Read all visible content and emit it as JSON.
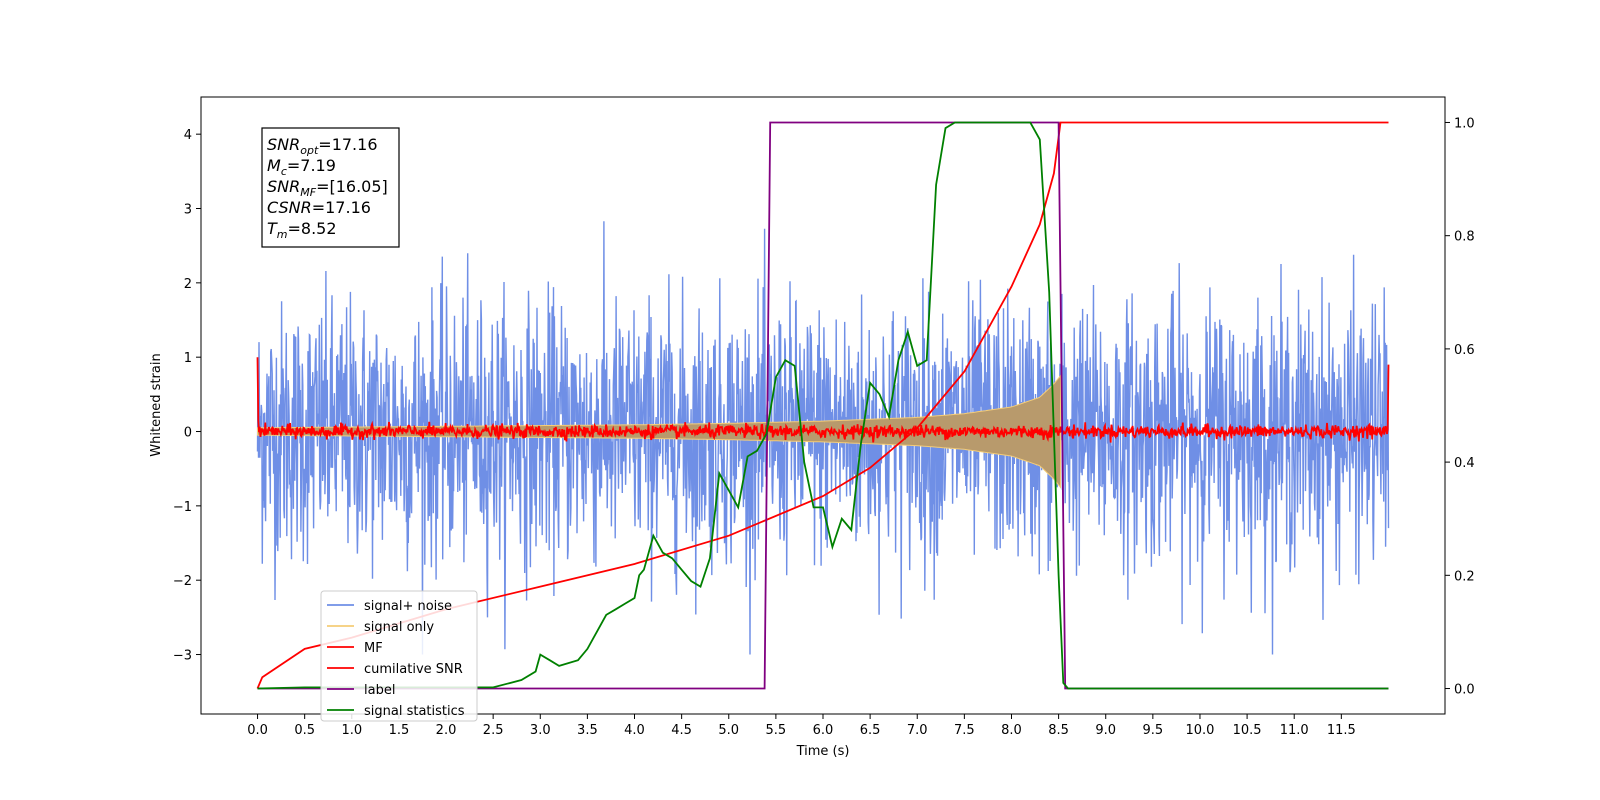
{
  "chart_data": {
    "type": "line",
    "xlabel": "Time (s)",
    "ylabel": "Whitened strain",
    "xlim": [
      -0.6,
      12.6
    ],
    "ylim_left": [
      -3.8,
      4.5
    ],
    "ylim_right": [
      -0.045,
      1.045
    ],
    "xticks": [
      "0.0",
      "0.5",
      "1.0",
      "1.5",
      "2.0",
      "2.5",
      "3.0",
      "3.5",
      "4.0",
      "4.5",
      "5.0",
      "5.5",
      "6.0",
      "6.5",
      "7.0",
      "7.5",
      "8.0",
      "8.5",
      "9.0",
      "9.5",
      "10.0",
      "10.5",
      "11.0",
      "11.5"
    ],
    "yticks_left": [
      "4",
      "3",
      "2",
      "1",
      "0",
      "−1",
      "−2",
      "−3"
    ],
    "yticks_right": [
      "1.0",
      "0.8",
      "0.6",
      "0.4",
      "0.2",
      "0.0"
    ],
    "annotation": {
      "lines": [
        {
          "sym": "SNR",
          "sub": "opt",
          "rest": "=17.16"
        },
        {
          "sym": "M",
          "sub": "c",
          "rest": "=7.19"
        },
        {
          "sym": "SNR",
          "sub": "MF",
          "rest": "=[16.05]"
        },
        {
          "sym": "CSNR",
          "sub": "",
          "rest": "=17.16"
        },
        {
          "sym": "T",
          "sub": "m",
          "rest": "=8.52"
        }
      ]
    },
    "series": [
      {
        "name": "signal+ noise",
        "color": "#6f8fe6",
        "axis": "left",
        "note_amplitude": 1.2,
        "x_range": [
          0,
          12.0
        ]
      },
      {
        "name": "signal only",
        "color": "#f5cd77",
        "axis": "left",
        "envelope": {
          "x": [
            0,
            2,
            4,
            5,
            6,
            7,
            7.5,
            8,
            8.3,
            8.45,
            8.52
          ],
          "amp": [
            0.05,
            0.07,
            0.09,
            0.11,
            0.14,
            0.19,
            0.24,
            0.33,
            0.46,
            0.64,
            0.75
          ]
        }
      },
      {
        "name": "MF",
        "color": "#ff0000",
        "axis": "left",
        "base": 0.0,
        "spread": 0.08,
        "end_values": [
          1.0,
          0.9
        ]
      },
      {
        "name": "cumilative SNR",
        "color": "#ff0000",
        "axis": "right",
        "x": [
          0.0,
          0.05,
          0.5,
          1.0,
          2.0,
          3.0,
          4.0,
          5.0,
          6.0,
          6.5,
          7.0,
          7.5,
          8.0,
          8.3,
          8.45,
          8.52,
          12.0
        ],
        "y": [
          0.0,
          0.02,
          0.07,
          0.09,
          0.14,
          0.18,
          0.22,
          0.27,
          0.34,
          0.39,
          0.46,
          0.56,
          0.71,
          0.82,
          0.91,
          1.0,
          1.0
        ]
      },
      {
        "name": "label",
        "color": "#800080",
        "axis": "right",
        "x": [
          0.0,
          5.38,
          5.44,
          8.5,
          8.57,
          12.0
        ],
        "y": [
          0.0,
          0.0,
          1.0,
          1.0,
          0.0,
          0.0
        ]
      },
      {
        "name": "signal statistics",
        "color": "#008000",
        "axis": "right",
        "x": [
          0.0,
          0.5,
          1.0,
          1.5,
          2.0,
          2.5,
          2.8,
          2.95,
          3.0,
          3.1,
          3.2,
          3.4,
          3.5,
          3.6,
          3.7,
          3.8,
          3.9,
          4.0,
          4.05,
          4.1,
          4.2,
          4.3,
          4.4,
          4.5,
          4.6,
          4.7,
          4.8,
          4.9,
          5.0,
          5.1,
          5.2,
          5.3,
          5.4,
          5.5,
          5.6,
          5.7,
          5.8,
          5.9,
          6.0,
          6.1,
          6.2,
          6.3,
          6.4,
          6.5,
          6.6,
          6.7,
          6.8,
          6.9,
          7.0,
          7.1,
          7.2,
          7.3,
          7.4,
          7.5,
          8.0,
          8.2,
          8.3,
          8.4,
          8.5,
          8.55,
          8.6,
          12.0
        ],
        "y": [
          0.0,
          0.002,
          0.002,
          0.002,
          0.002,
          0.002,
          0.015,
          0.03,
          0.06,
          0.05,
          0.04,
          0.05,
          0.07,
          0.1,
          0.13,
          0.14,
          0.15,
          0.16,
          0.2,
          0.21,
          0.27,
          0.24,
          0.23,
          0.21,
          0.19,
          0.18,
          0.23,
          0.38,
          0.35,
          0.32,
          0.41,
          0.42,
          0.45,
          0.55,
          0.58,
          0.57,
          0.4,
          0.32,
          0.32,
          0.25,
          0.3,
          0.28,
          0.43,
          0.54,
          0.52,
          0.48,
          0.58,
          0.63,
          0.57,
          0.58,
          0.89,
          0.99,
          1.0,
          1.0,
          1.0,
          1.0,
          0.97,
          0.7,
          0.2,
          0.01,
          0.0,
          0.0
        ]
      }
    ],
    "legend_placement": "lower-left",
    "grid": false
  }
}
